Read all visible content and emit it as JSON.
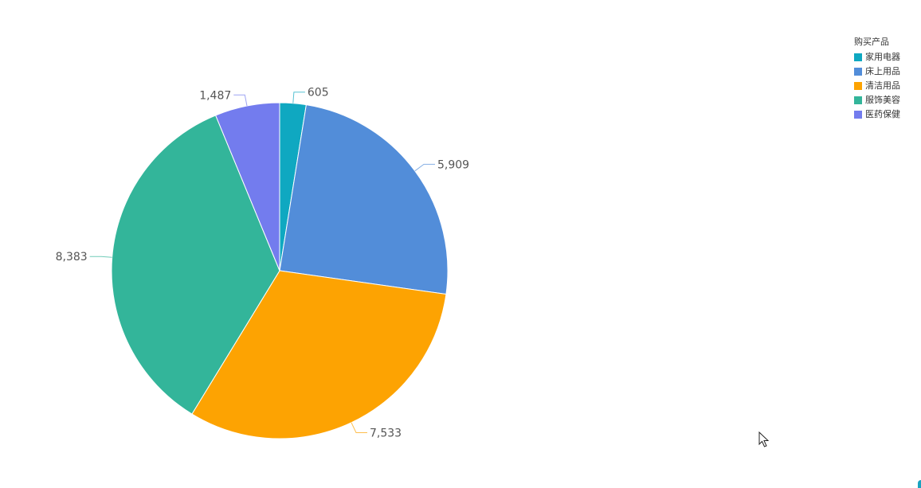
{
  "chart_data": {
    "type": "pie",
    "title": "",
    "legend": {
      "title": "购买产品",
      "position": "top-right"
    },
    "slices": [
      {
        "label": "家用电器",
        "value": 605,
        "display": "605",
        "color": "#0fa8c1"
      },
      {
        "label": "床上用品",
        "value": 5909,
        "display": "5,909",
        "color": "#528dd9"
      },
      {
        "label": "清洁用品",
        "value": 7533,
        "display": "7,533",
        "color": "#fda302"
      },
      {
        "label": "服饰美容",
        "value": 8383,
        "display": "8,383",
        "color": "#33b59a"
      },
      {
        "label": "医药保健",
        "value": 1487,
        "display": "1,487",
        "color": "#737cee"
      }
    ]
  }
}
